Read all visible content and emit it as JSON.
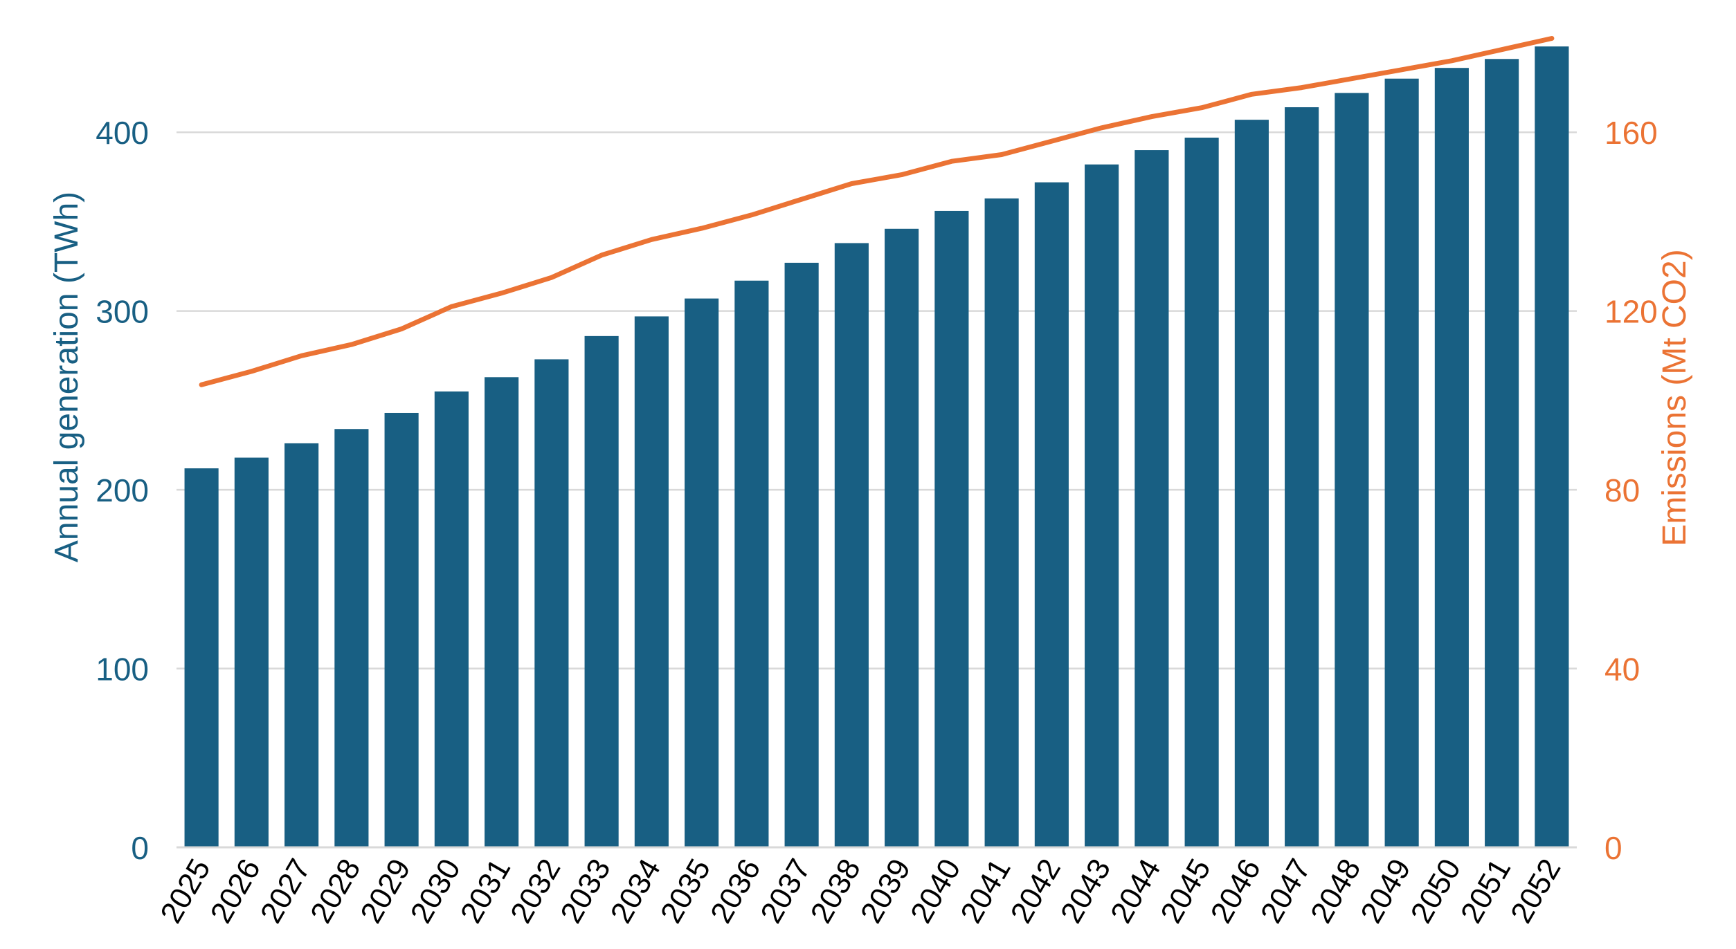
{
  "chart_data": {
    "type": "bar",
    "categories": [
      "2025",
      "2026",
      "2027",
      "2028",
      "2029",
      "2030",
      "2031",
      "2032",
      "2033",
      "2034",
      "2035",
      "2036",
      "2037",
      "2038",
      "2039",
      "2040",
      "2041",
      "2042",
      "2043",
      "2044",
      "2045",
      "2046",
      "2047",
      "2048",
      "2049",
      "2050",
      "2051",
      "2052"
    ],
    "series": [
      {
        "type": "bar",
        "axis": "left",
        "color": "#185F83",
        "values": [
          212,
          218,
          226,
          234,
          243,
          255,
          263,
          273,
          286,
          297,
          307,
          317,
          327,
          338,
          346,
          356,
          363,
          372,
          382,
          390,
          397,
          407,
          414,
          422,
          430,
          436,
          441,
          448
        ]
      },
      {
        "type": "line",
        "axis": "right",
        "color": "#EB7334",
        "values": [
          103.5,
          106.5,
          110,
          112.5,
          116,
          121,
          124,
          127.5,
          132.5,
          136,
          138.5,
          141.5,
          145,
          148.5,
          150.5,
          153.5,
          155,
          158,
          161,
          163.5,
          165.5,
          168.5,
          170,
          172,
          174,
          176,
          178.5,
          181
        ]
      }
    ],
    "ylabel": "Annual generation (TWh)",
    "ylabel_right": "Emissions (Mt CO2)",
    "ylim": [
      0,
      450
    ],
    "ylim_right": [
      0,
      180
    ],
    "yticks": [
      0,
      100,
      200,
      300,
      400
    ],
    "yticks_right": [
      0,
      40,
      80,
      120,
      160
    ],
    "grid": true,
    "axis_colors": {
      "left": "#185F83",
      "right": "#EB7334",
      "grid": "#D9D9D9"
    }
  }
}
